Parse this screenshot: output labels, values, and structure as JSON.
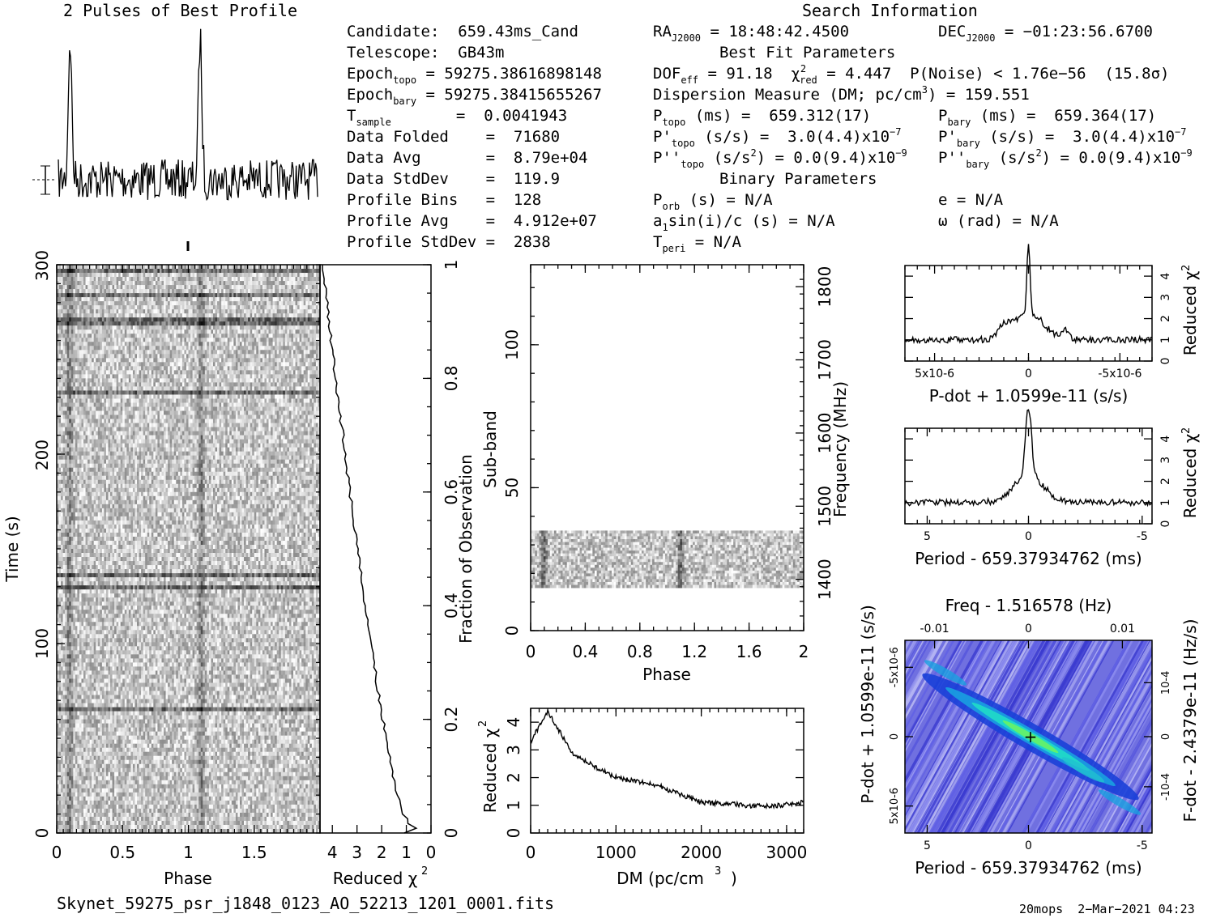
{
  "chart_data": [
    {
      "type": "line",
      "title": "2 Pulses of Best Profile",
      "xlabel": "",
      "ylabel": "",
      "peaks_at_phase": [
        0.09,
        1.09
      ],
      "xlim": [
        0,
        2
      ]
    },
    {
      "type": "heatmap",
      "title": "",
      "xlabel": "Phase",
      "ylabel": "Time (s)",
      "xlim": [
        0,
        2
      ],
      "ylim": [
        0,
        300
      ],
      "x_ticks": [
        "0",
        "0.5",
        "1",
        "1.5"
      ],
      "y_ticks": [
        "0",
        "100",
        "200",
        "300"
      ]
    },
    {
      "type": "line",
      "title": "",
      "xlabel": "Reduced χ2",
      "ylabel": "Fraction of Observation",
      "xlim": [
        4.5,
        0
      ],
      "ylim": [
        0,
        1
      ],
      "x_ticks": [
        "4",
        "3",
        "2",
        "1",
        "0"
      ],
      "y_ticks": [
        "0",
        "0.2",
        "0.4",
        "0.6",
        "0.8",
        "1"
      ]
    },
    {
      "type": "heatmap",
      "title": "",
      "xlabel": "Phase",
      "ylabel": "Sub-band",
      "ylabel_right": "Frequency (MHz)",
      "xlim": [
        0,
        2
      ],
      "ylim": [
        0,
        128
      ],
      "x_ticks": [
        "0",
        "0.4",
        "0.8",
        "1.2",
        "1.6",
        "2"
      ],
      "y_ticks": [
        "0",
        "50",
        "100"
      ],
      "y_ticks_right": [
        "1400",
        "1500",
        "1600",
        "1700",
        "1800"
      ],
      "data_band": [
        15,
        35
      ]
    },
    {
      "type": "line",
      "title": "",
      "xlabel": "DM (pc/cm3)",
      "ylabel": "Reduced χ2",
      "xlim": [
        0,
        3200
      ],
      "ylim": [
        0,
        4.5
      ],
      "x_ticks": [
        "0",
        "1000",
        "2000",
        "3000"
      ],
      "y_ticks": [
        "0",
        "1",
        "2",
        "3",
        "4"
      ],
      "key_points": [
        [
          0,
          3.3
        ],
        [
          200,
          4.4
        ],
        [
          500,
          2.8
        ],
        [
          1000,
          2.0
        ],
        [
          1500,
          1.7
        ],
        [
          2000,
          1.1
        ],
        [
          2800,
          0.95
        ],
        [
          3200,
          1.1
        ]
      ]
    },
    {
      "type": "line",
      "title": "",
      "xlabel": "P-dot + 1.0599e-11 (s/s)",
      "ylabel": "Reduced χ2",
      "ylim": [
        0,
        4.5
      ],
      "y_ticks": [
        "0",
        "1",
        "2",
        "3",
        "4"
      ],
      "x_ticks": [
        "5x10-6",
        "0",
        "-5x10-6"
      ],
      "peak": 4.3
    },
    {
      "type": "line",
      "title": "",
      "xlabel": "Period - 659.37934762 (ms)",
      "ylabel": "Reduced χ2",
      "xlim": [
        6,
        -6
      ],
      "ylim": [
        0,
        4.5
      ],
      "x_ticks": [
        "5",
        "0",
        "-5"
      ],
      "y_ticks": [
        "0",
        "1",
        "2",
        "3",
        "4"
      ],
      "peak": 4.3
    },
    {
      "type": "heatmap",
      "title": "Freq - 1.516578 (Hz)",
      "xlabel": "Period - 659.37934762 (ms)",
      "ylabel": "P-dot + 1.0599e-11 (s/s)",
      "ylabel_right": "F-dot - 2.4379e-11 (Hz/s)",
      "x_ticks": [
        "5",
        "0",
        "-5"
      ],
      "x_ticks_top": [
        "-0.01",
        "0",
        "0.01"
      ],
      "y_ticks": [
        "5x10-6",
        "0",
        "-5x10-6"
      ],
      "y_ticks_right": [
        "-10-4",
        "0",
        "10-4"
      ]
    }
  ],
  "search_info_title": "Search Information",
  "candidate": "Candidate:  659.43ms_Cand",
  "telescope": "Telescope:  GB43m",
  "epoch_topo_val": " = 59275.38616898148",
  "epoch_bary_val": " = 59275.38415655267",
  "tsample_val": "       =  0.0041943",
  "data_folded": "Data Folded    =  71680",
  "data_avg": "Data Avg       =  8.79e+04",
  "data_stddev": "Data StdDev    =  119.9",
  "profile_bins": "Profile Bins   =  128",
  "profile_avg": "Profile Avg    =  4.912e+07",
  "profile_stddev": "Profile StdDev =  2838",
  "ra_val": " = 18:48:42.4500",
  "dec_val": " = −01:23:56.6700",
  "best_fit": "Best Fit Parameters",
  "dof_val": " = 91.18  ",
  "chi_val": " = 4.447  P(Noise) < 1.76e−56  (15.8σ)",
  "dm_line": "Dispersion Measure (DM; pc/cm",
  "dm_val": ") = 159.551",
  "ptopo_val": " (ms) =  659.312(17)",
  "pbary_val": " (ms) =  659.364(17)",
  "pdtopo_val": " (s/s) =  3.0(4.4)x10",
  "pdbary_val": " (s/s) =  3.0(4.4)x10",
  "pddtopo_val": " (s/s",
  "pddtopo_val2": ") = 0.0(9.4)x10",
  "pddbary_val": " (s/s",
  "pddbary_val2": ") = 0.0(9.4)x10",
  "binary_title": "Binary Parameters",
  "porb": " (s) = N/A",
  "e_val": "e = N/A",
  "a1": "sin(i)/c (s) = N/A",
  "omega": "ω (rad) = N/A",
  "tperi_val": " = N/A",
  "filename": "Skynet_59275_psr_j1848_0123_AO_52213_1201_0001.fits",
  "footer_right": "20mops  2−Mar−2021 04:23"
}
